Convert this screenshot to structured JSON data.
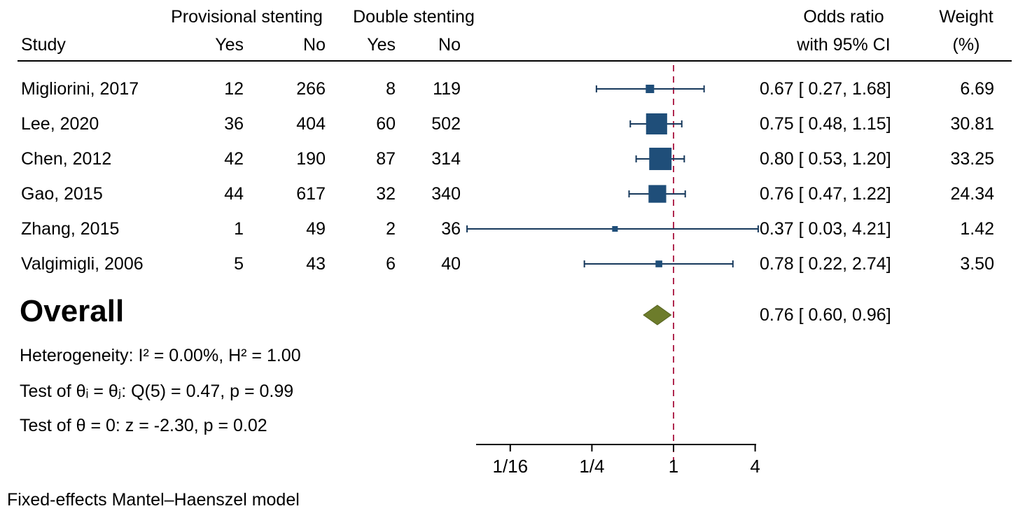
{
  "header": {
    "group1": "Provisional stenting",
    "group2": "Double stenting",
    "study": "Study",
    "g1_yes": "Yes",
    "g1_no": "No",
    "g2_yes": "Yes",
    "g2_no": "No",
    "or_line1": "Odds ratio",
    "or_line2": "with 95% CI",
    "weight_line1": "Weight",
    "weight_line2": "(%)"
  },
  "chart_data": {
    "type": "forest",
    "x_scale": "log2",
    "null_line_value": 1,
    "x_axis_range": [
      0.0625,
      4
    ],
    "x_ticks": [
      {
        "value": 0.0625,
        "label": "1/16"
      },
      {
        "value": 0.25,
        "label": "1/4"
      },
      {
        "value": 1,
        "label": "1"
      },
      {
        "value": 4,
        "label": "4"
      }
    ],
    "studies": [
      {
        "name": "Migliorini, 2017",
        "prov_yes": 12,
        "prov_no": 266,
        "dbl_yes": 8,
        "dbl_no": 119,
        "or": 0.67,
        "ci_low": 0.27,
        "ci_high": 1.68,
        "or_label": "0.67 [ 0.27,  1.68]",
        "weight": 6.69,
        "weight_label": "6.69"
      },
      {
        "name": "Lee, 2020",
        "prov_yes": 36,
        "prov_no": 404,
        "dbl_yes": 60,
        "dbl_no": 502,
        "or": 0.75,
        "ci_low": 0.48,
        "ci_high": 1.15,
        "or_label": "0.75 [ 0.48,  1.15]",
        "weight": 30.81,
        "weight_label": "30.81"
      },
      {
        "name": "Chen, 2012",
        "prov_yes": 42,
        "prov_no": 190,
        "dbl_yes": 87,
        "dbl_no": 314,
        "or": 0.8,
        "ci_low": 0.53,
        "ci_high": 1.2,
        "or_label": "0.80 [ 0.53,  1.20]",
        "weight": 33.25,
        "weight_label": "33.25"
      },
      {
        "name": "Gao, 2015",
        "prov_yes": 44,
        "prov_no": 617,
        "dbl_yes": 32,
        "dbl_no": 340,
        "or": 0.76,
        "ci_low": 0.47,
        "ci_high": 1.22,
        "or_label": "0.76 [ 0.47,  1.22]",
        "weight": 24.34,
        "weight_label": "24.34"
      },
      {
        "name": "Zhang, 2015",
        "prov_yes": 1,
        "prov_no": 49,
        "dbl_yes": 2,
        "dbl_no": 36,
        "or": 0.37,
        "ci_low": 0.03,
        "ci_high": 4.21,
        "or_label": "0.37 [ 0.03,  4.21]",
        "weight": 1.42,
        "weight_label": "1.42"
      },
      {
        "name": "Valgimigli, 2006",
        "prov_yes": 5,
        "prov_no": 43,
        "dbl_yes": 6,
        "dbl_no": 40,
        "or": 0.78,
        "ci_low": 0.22,
        "ci_high": 2.74,
        "or_label": "0.78 [ 0.22,  2.74]",
        "weight": 3.5,
        "weight_label": "3.50"
      }
    ],
    "overall": {
      "label": "Overall",
      "or": 0.76,
      "ci_low": 0.6,
      "ci_high": 0.96,
      "or_label": "0.76 [ 0.60,  0.96]"
    },
    "stats": [
      "Heterogeneity: I² = 0.00%, H² = 1.00",
      "Test of θᵢ = θⱼ: Q(5) = 0.47, p = 0.99",
      "Test of θ = 0: z = -2.30, p = 0.02"
    ],
    "footer": "Fixed-effects Mantel–Haenszel model",
    "colors": {
      "marker": "#1F4E79",
      "ci_line": "#17395C",
      "diamond": "#6D7C2B",
      "diamond_edge": "#55621E",
      "null_line": "#B0284F",
      "axis": "#000000"
    }
  }
}
